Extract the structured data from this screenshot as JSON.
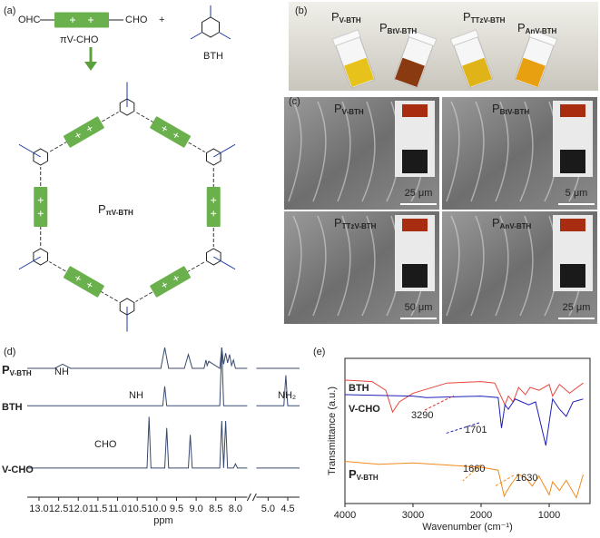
{
  "panels": {
    "a": {
      "label": "(a)",
      "monomer_left": "OHC",
      "monomer_right": "CHO",
      "plus": "+",
      "monomer_name": "πV-CHO",
      "linker_name": "BTH",
      "polymer": {
        "main": "P",
        "sub": "πV-BTH"
      }
    },
    "b": {
      "label": "(b)",
      "samples": [
        {
          "main": "P",
          "sub": "V-BTH"
        },
        {
          "main": "P",
          "sub": "BtV-BTH"
        },
        {
          "main": "P",
          "sub": "TTzV-BTH"
        },
        {
          "main": "P",
          "sub": "AnV-BTH"
        }
      ]
    },
    "c": {
      "label": "(c)",
      "images": [
        {
          "sample": {
            "main": "P",
            "sub": "V-BTH"
          },
          "scale_bar": "25 μm"
        },
        {
          "sample": {
            "main": "P",
            "sub": "BtV-BTH"
          },
          "scale_bar": "5 μm"
        },
        {
          "sample": {
            "main": "P",
            "sub": "TTzV-BTH"
          },
          "scale_bar": "50 μm"
        },
        {
          "sample": {
            "main": "P",
            "sub": "AnV-BTH"
          },
          "scale_bar": "25 μm"
        }
      ]
    }
  },
  "chart_data": [
    {
      "type": "line",
      "panel": "(d)",
      "xlabel": "ppm",
      "xlim": [
        13.3,
        4.2
      ],
      "xbreak": [
        7.7,
        5.3
      ],
      "ylim": [
        0,
        110
      ],
      "xticks": [
        {
          "value": 13,
          "label": "13.0"
        },
        12.5,
        {
          "value": 12,
          "label": "12.0"
        },
        11.5,
        {
          "value": 11,
          "label": "11.0"
        },
        10.5,
        {
          "value": 10,
          "label": "10.0"
        },
        9.5,
        {
          "value": 9,
          "label": "9.0"
        },
        8.5,
        {
          "value": 8,
          "label": "8.0"
        },
        {
          "value": 5,
          "label": "5.0"
        },
        4.5
      ],
      "series": [
        {
          "name": "P",
          "subscript": "V-BTH",
          "color": "#3a4a6e",
          "x": [
            13.3,
            12.6,
            12.4,
            12.2,
            9.9,
            9.8,
            9.7,
            9.3,
            9.2,
            9.1,
            8.8,
            8.75,
            8.72,
            8.68,
            8.4,
            8.35,
            8.3,
            8.25,
            8.2,
            8.15,
            8.1,
            8.05,
            8.0,
            7.7,
            6.5,
            5.3,
            4.2
          ],
          "values": [
            93,
            93,
            96,
            93,
            93,
            108,
            93,
            93,
            103,
            93,
            93,
            99,
            95,
            98,
            93,
            108,
            96,
            104,
            97,
            103,
            95,
            99,
            93,
            93,
            null,
            93,
            93
          ]
        },
        {
          "name": "BTH",
          "color": "#3a4a6e",
          "x": [
            13.3,
            9.85,
            9.8,
            9.75,
            8.4,
            8.35,
            8.3,
            7.7,
            6.5,
            5.3,
            4.6,
            4.55,
            4.5,
            4.2
          ],
          "values": [
            66,
            66,
            80,
            66,
            66,
            108,
            66,
            66,
            null,
            66,
            66,
            88,
            66,
            66
          ]
        },
        {
          "name": "V-CHO",
          "color": "#3a4a6e",
          "x": [
            13.3,
            10.25,
            10.2,
            10.15,
            9.8,
            9.75,
            9.7,
            9.2,
            9.15,
            9.1,
            8.4,
            8.35,
            8.3,
            8.25,
            8.2,
            8.05,
            8.0,
            7.95,
            7.7,
            6.5,
            5.3,
            4.2
          ],
          "values": [
            21,
            21,
            58,
            21,
            21,
            50,
            21,
            21,
            45,
            21,
            21,
            55,
            21,
            55,
            21,
            21,
            24,
            21,
            21,
            null,
            21,
            21
          ]
        }
      ],
      "annotations": [
        {
          "text": "NH",
          "color": "#1a3aa0"
        },
        {
          "text": "NH",
          "color": "#1a3aa0"
        },
        {
          "text": "NH₂",
          "color": "#1a3aa0"
        },
        {
          "text": "CHO",
          "color": "#d32f2f"
        }
      ]
    },
    {
      "type": "line",
      "panel": "(e)",
      "xlabel": "Wavenumber (cm⁻¹)",
      "ylabel": "Transmittance (a.u.)",
      "xlim": [
        4000,
        400
      ],
      "ylim": [
        0,
        10
      ],
      "xticks": [
        4000,
        3000,
        2000,
        1000
      ],
      "series": [
        {
          "name": "BTH",
          "color": "#e8453c",
          "x": [
            4000,
            3600,
            3400,
            3300,
            3200,
            3000,
            2500,
            2000,
            1800,
            1650,
            1600,
            1530,
            1450,
            1350,
            1280,
            1150,
            1000,
            950,
            850,
            700,
            500
          ],
          "values": [
            8.5,
            8.4,
            7.8,
            6.3,
            7.0,
            7.6,
            8.3,
            8.4,
            8.3,
            6.8,
            7.4,
            7.0,
            8.0,
            7.5,
            8.0,
            7.8,
            8.2,
            7.4,
            8.2,
            7.6,
            8.3
          ]
        },
        {
          "name": "V-CHO",
          "color": "#1f1fb8",
          "x": [
            4000,
            3000,
            2800,
            2000,
            1750,
            1700,
            1650,
            1600,
            1500,
            1400,
            1300,
            1200,
            1050,
            950,
            850,
            750,
            650,
            500
          ],
          "values": [
            7.5,
            7.4,
            7.3,
            7.4,
            7.3,
            5.2,
            6.8,
            6.5,
            7.2,
            7.0,
            6.8,
            7.0,
            4.0,
            7.2,
            6.5,
            6.0,
            7.0,
            7.2
          ]
        },
        {
          "name": "P",
          "subscript": "V-BTH",
          "color": "#f08a1c",
          "x": [
            4000,
            3500,
            3000,
            2000,
            1750,
            1660,
            1630,
            1550,
            1450,
            1350,
            1250,
            1150,
            1000,
            950,
            850,
            750,
            600,
            500
          ],
          "values": [
            2.9,
            2.7,
            2.8,
            2.5,
            2.3,
            0.5,
            0.8,
            1.4,
            2.0,
            1.8,
            1.2,
            1.9,
            0.6,
            1.5,
            0.9,
            1.6,
            0.4,
            2.0
          ]
        }
      ],
      "annotations": [
        {
          "text": "3290",
          "color": "#222"
        },
        {
          "text": "1701",
          "color": "#222"
        },
        {
          "text": "1660",
          "color": "#222"
        },
        {
          "text": "1630",
          "color": "#222"
        }
      ]
    }
  ]
}
